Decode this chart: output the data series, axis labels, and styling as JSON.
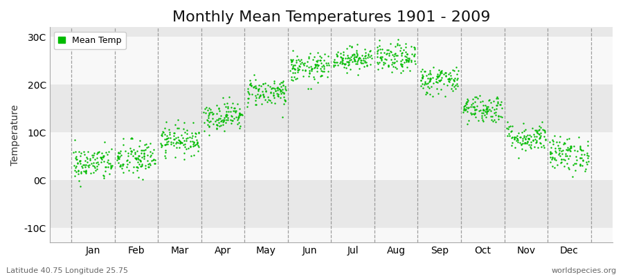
{
  "title": "Monthly Mean Temperatures 1901 - 2009",
  "ylabel": "Temperature",
  "xlabel_months": [
    "Jan",
    "Feb",
    "Mar",
    "Apr",
    "May",
    "Jun",
    "Jul",
    "Aug",
    "Sep",
    "Oct",
    "Nov",
    "Dec"
  ],
  "ytick_labels": [
    "-10C",
    "0C",
    "10C",
    "20C",
    "30C"
  ],
  "ytick_values": [
    -10,
    0,
    10,
    20,
    30
  ],
  "ylim": [
    -13,
    32
  ],
  "xlim": [
    0,
    13
  ],
  "legend_label": "Mean Temp",
  "dot_color": "#00bb00",
  "dot_size": 3,
  "fig_bg_color": "#ffffff",
  "plot_bg_color": "#f0f0f0",
  "band_color_light": "#f8f8f8",
  "band_color_dark": "#e8e8e8",
  "subtitle_left": "Latitude 40.75 Longitude 25.75",
  "subtitle_right": "worldspecies.org",
  "mean_temps": [
    3.5,
    4.5,
    8.5,
    13.5,
    18.5,
    23.5,
    25.5,
    25.5,
    21.0,
    15.0,
    9.0,
    5.5
  ],
  "std_temps": [
    1.8,
    2.0,
    1.5,
    1.5,
    1.5,
    1.5,
    1.2,
    1.5,
    1.5,
    1.5,
    1.5,
    1.8
  ],
  "n_years": 109,
  "title_fontsize": 16,
  "axis_fontsize": 10,
  "tick_fontsize": 10,
  "legend_fontsize": 9,
  "fig_width": 9.0,
  "fig_height": 4.0,
  "dpi": 100
}
